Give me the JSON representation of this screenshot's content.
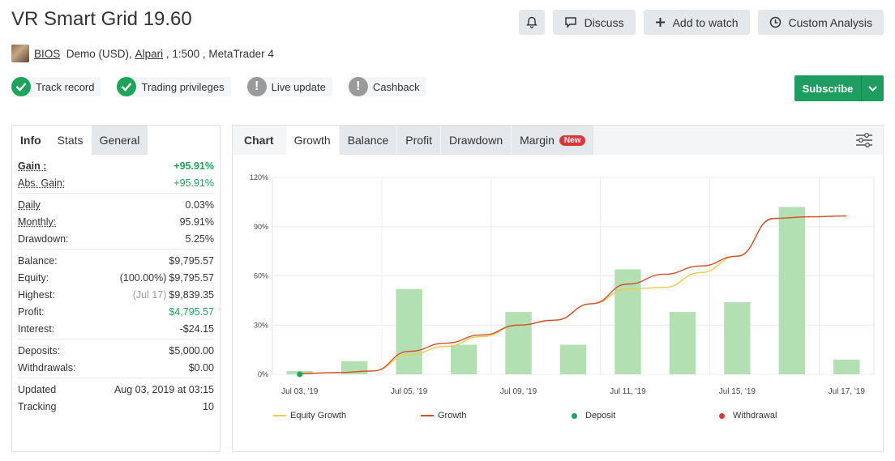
{
  "header": {
    "title": "VR Smart Grid 19.60",
    "buttons": {
      "discuss": "Discuss",
      "watch": "Add to watch",
      "analysis": "Custom Analysis"
    }
  },
  "account": {
    "author": "BIOS",
    "type": "Demo (USD),",
    "broker": "Alpari",
    "leverage": ", 1:500 , MetaTrader 4"
  },
  "badges": [
    {
      "label": "Track record",
      "status": "ok"
    },
    {
      "label": "Trading privileges",
      "status": "ok"
    },
    {
      "label": "Live update",
      "status": "warn"
    },
    {
      "label": "Cashback",
      "status": "warn"
    }
  ],
  "subscribe": "Subscribe",
  "left_tabs": [
    "Info",
    "Stats",
    "General"
  ],
  "stats": {
    "gain_label": "Gain :",
    "gain": "+95.91%",
    "abs_gain_label": "Abs. Gain:",
    "abs_gain": "+95.91%",
    "daily_label": "Daily",
    "daily": "0.03%",
    "monthly_label": "Monthly:",
    "monthly": "95.91%",
    "drawdown_label": "Drawdown:",
    "drawdown": "5.25%",
    "balance_label": "Balance:",
    "balance": "$9,795.57",
    "equity_label": "Equity:",
    "equity_pct": "(100.00%)",
    "equity": "$9,795.57",
    "highest_label": "Highest:",
    "highest_date": "(Jul 17)",
    "highest": "$9,839.35",
    "profit_label": "Profit:",
    "profit": "$4,795.57",
    "interest_label": "Interest:",
    "interest": "-$24.15",
    "deposits_label": "Deposits:",
    "deposits": "$5,000.00",
    "withdrawals_label": "Withdrawals:",
    "withdrawals": "$0.00",
    "updated_label": "Updated",
    "updated": "Aug 03, 2019 at 03:15",
    "tracking_label": "Tracking",
    "tracking": "10"
  },
  "chart_tabs": {
    "chart": "Chart",
    "growth": "Growth",
    "balance": "Balance",
    "profit": "Profit",
    "drawdown": "Drawdown",
    "margin": "Margin",
    "new": "New"
  },
  "chart_data": {
    "type": "bar",
    "y_ticks": [
      "120%",
      "90%",
      "60%",
      "30%",
      "0%"
    ],
    "ylim": [
      0,
      120
    ],
    "x_labels": [
      "Jul 03, '19",
      "Jul 05, '19",
      "Jul 09, '19",
      "Jul 11, '19",
      "Jul 15, '19",
      "Jul 17, '19"
    ],
    "bars": [
      2,
      8,
      52,
      18,
      38,
      18,
      64,
      38,
      44,
      102,
      9
    ],
    "growth": [
      [
        0,
        0.5
      ],
      [
        0.5,
        1
      ],
      [
        1,
        2
      ],
      [
        1.5,
        14
      ],
      [
        2,
        19
      ],
      [
        2.5,
        24
      ],
      [
        3,
        30
      ],
      [
        3.5,
        33
      ],
      [
        4,
        43
      ],
      [
        4.5,
        55
      ],
      [
        5,
        61
      ],
      [
        5.5,
        66
      ],
      [
        6,
        72
      ],
      [
        6.5,
        95
      ],
      [
        7,
        96
      ],
      [
        7.5,
        96.5
      ]
    ],
    "equity_growth": [
      [
        0,
        0.5
      ],
      [
        0.5,
        1
      ],
      [
        1,
        2
      ],
      [
        1.5,
        12
      ],
      [
        2,
        17
      ],
      [
        2.5,
        23
      ],
      [
        3,
        30
      ],
      [
        3.5,
        33
      ],
      [
        4,
        43
      ],
      [
        4.5,
        52
      ],
      [
        5,
        53
      ],
      [
        5.5,
        62
      ],
      [
        6,
        72
      ],
      [
        6.5,
        95
      ],
      [
        7,
        96
      ],
      [
        7.5,
        96.5
      ]
    ],
    "deposit_points": [
      [
        0,
        0
      ]
    ],
    "legend": [
      "Equity Growth",
      "Growth",
      "Deposit",
      "Withdrawal"
    ],
    "colors": {
      "bars": "#b3e0b3",
      "growth": "#d0502e",
      "equity": "#f2c94c",
      "deposit": "#1ea35a",
      "withdrawal": "#d9383a"
    }
  }
}
